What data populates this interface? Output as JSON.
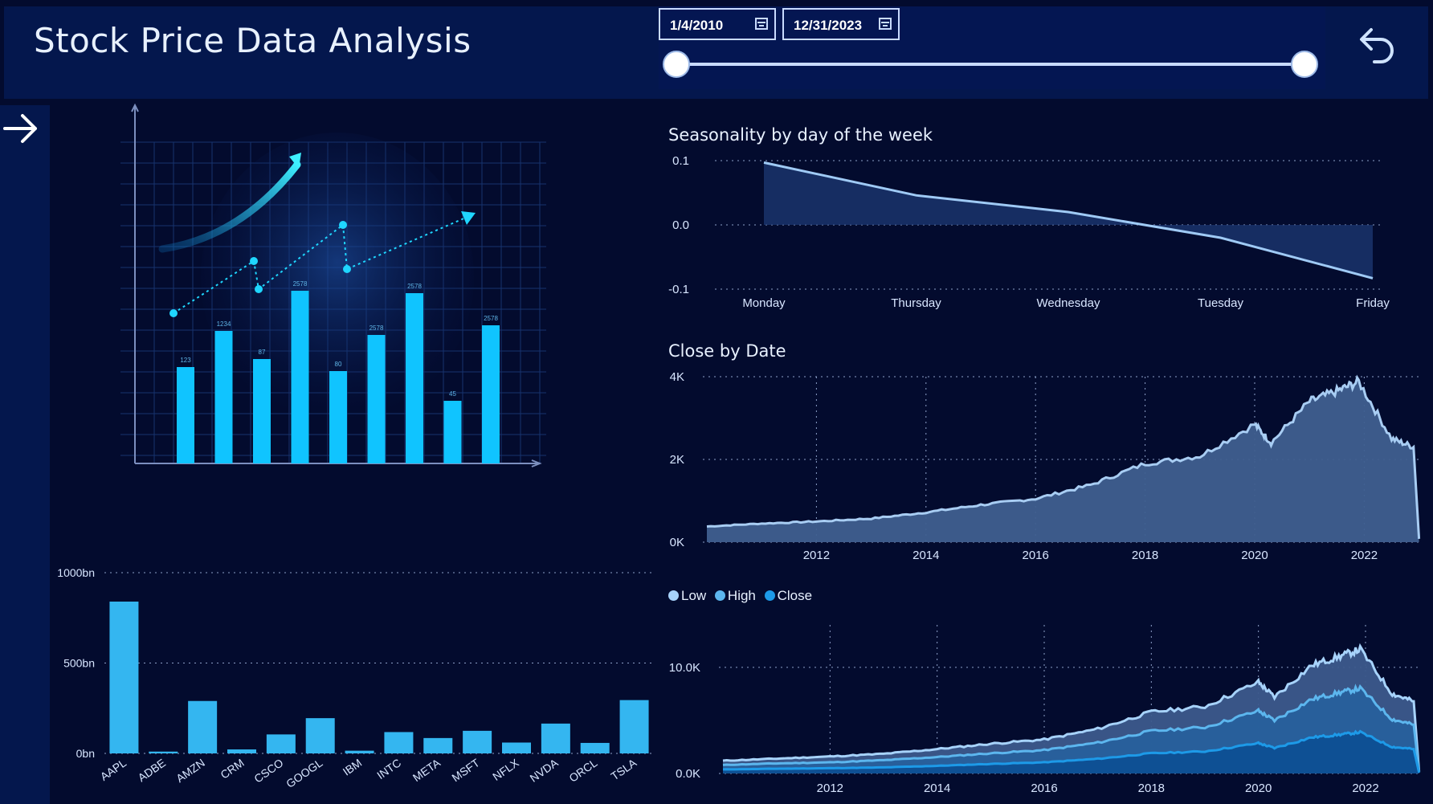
{
  "header": {
    "title": "Stock Price Data Analysis",
    "start_date": "1/4/2010",
    "end_date": "12/31/2023",
    "calendar_icon": "calendar-icon",
    "back_icon": "undo-arrow-icon"
  },
  "nav": {
    "next_icon": "arrow-right-icon"
  },
  "illustration": {
    "bar_labels": [
      "123",
      "1234",
      "87",
      "2578",
      "80",
      "2578",
      "2578",
      "45",
      "2578"
    ]
  },
  "chart_data": [
    {
      "id": "seasonality",
      "type": "area",
      "title": "Seasonality by day of the week",
      "categories": [
        "Monday",
        "Thursday",
        "Wednesday",
        "Tuesday",
        "Friday"
      ],
      "values": [
        0.097,
        0.046,
        0.02,
        -0.02,
        -0.083
      ],
      "yticks": [
        "0.1",
        "0.0",
        "-0.1"
      ],
      "ylim": [
        -0.1,
        0.1
      ],
      "grid": true,
      "color": "#9fcaf5"
    },
    {
      "id": "close-by-date",
      "type": "area",
      "title": "Close by Date",
      "x": [
        2010,
        2011,
        2012,
        2013,
        2014,
        2015,
        2016,
        2017,
        2018,
        2019,
        2020,
        2020.3,
        2021,
        2021.5,
        2021.9,
        2022.5,
        2022.9,
        2023.0
      ],
      "values": [
        380,
        450,
        500,
        570,
        720,
        900,
        1050,
        1380,
        1900,
        2080,
        2850,
        2400,
        3400,
        3650,
        3880,
        2500,
        2300,
        80
      ],
      "yticks": [
        "4K",
        "2K",
        "0K"
      ],
      "ylim": [
        0,
        4000
      ],
      "xticks": [
        "2012",
        "2014",
        "2016",
        "2018",
        "2020",
        "2022"
      ],
      "grid": true,
      "color": "#a8cdf3"
    },
    {
      "id": "market-cap",
      "type": "bar",
      "categories": [
        "AAPL",
        "ADBE",
        "AMZN",
        "CRM",
        "CSCO",
        "GOOGL",
        "IBM",
        "INTC",
        "META",
        "MSFT",
        "NFLX",
        "NVDA",
        "ORCL",
        "TSLA"
      ],
      "values": [
        840,
        10,
        290,
        22,
        105,
        195,
        15,
        118,
        85,
        125,
        60,
        165,
        58,
        295
      ],
      "yticks": [
        "1000bn",
        "500bn",
        "0bn"
      ],
      "ylim": [
        0,
        1000
      ],
      "grid": true,
      "color": "#34b6f0"
    },
    {
      "id": "low-high-close",
      "type": "area",
      "legend": [
        "Low",
        "High",
        "Close"
      ],
      "legend_colors": [
        "#a7d3fb",
        "#5cb6ee",
        "#1d9ae8"
      ],
      "x": [
        2010,
        2011,
        2012,
        2013,
        2014,
        2015,
        2016,
        2017,
        2018,
        2019,
        2020,
        2020.3,
        2021,
        2021.5,
        2021.9,
        2022.5,
        2022.9,
        2023.0
      ],
      "series": [
        {
          "name": "Low",
          "values": [
            1200,
            1400,
            1600,
            1850,
            2300,
            2800,
            3200,
            4200,
            5800,
            6300,
            8600,
            7200,
            10200,
            11000,
            11700,
            7500,
            6800,
            200
          ]
        },
        {
          "name": "High",
          "values": [
            800,
            950,
            1050,
            1250,
            1550,
            1900,
            2200,
            2900,
            4000,
            4350,
            5900,
            5000,
            7000,
            7600,
            8000,
            5100,
            4600,
            130
          ]
        },
        {
          "name": "Close",
          "values": [
            380,
            450,
            500,
            570,
            720,
            900,
            1050,
            1380,
            1900,
            2080,
            2850,
            2400,
            3400,
            3650,
            3880,
            2500,
            2300,
            80
          ]
        }
      ],
      "yticks": [
        "10.0K",
        "0.0K"
      ],
      "ylim": [
        0,
        14000
      ],
      "xticks": [
        "2012",
        "2014",
        "2016",
        "2018",
        "2020",
        "2022"
      ],
      "grid": true
    }
  ]
}
